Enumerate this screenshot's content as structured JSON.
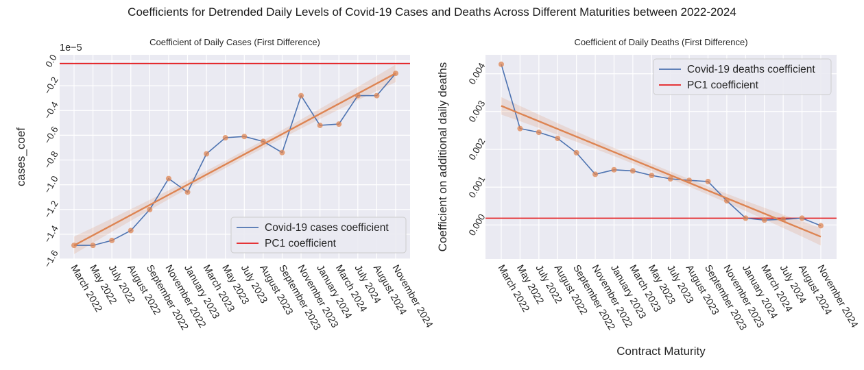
{
  "figure": {
    "suptitle": "Coefficients for Detrended Daily Levels of Covid-19 Cases and Deaths Across Different Maturities between 2022-2024"
  },
  "colors": {
    "panel_background": "#EAEAF2",
    "grid": "#FFFFFF",
    "series_line": "#4C72B0",
    "scatter_and_fit": "#DD8452",
    "pc1_line": "#E41A1C",
    "text": "#262626"
  },
  "chart_data": [
    {
      "type": "line",
      "title": "Coefficient of Daily Cases (First Difference)",
      "xlabel": "",
      "ylabel": "cases_coef",
      "y_offset_label": "1e−5",
      "ylim": [
        -1.6,
        0.05
      ],
      "y_unit_multiplier": 1e-05,
      "y_ticks": [
        0.0,
        -0.2,
        -0.4,
        -0.6,
        -0.8,
        -1.0,
        -1.2,
        -1.4,
        -1.6
      ],
      "y_tick_labels": [
        "0.0",
        "−0.2",
        "−0.4",
        "−0.6",
        "−0.8",
        "−1.0",
        "−1.2",
        "−1.4",
        "−1.6"
      ],
      "x_tick_labels": [
        "March 2022",
        "May 2022",
        "July 2022",
        "August 2022",
        "September 2022",
        "November 2022",
        "January 2023",
        "March 2023",
        "May 2023",
        "July 2023",
        "August 2023",
        "September 2023",
        "November 2023",
        "January 2024",
        "March 2024",
        "July 2024",
        "August 2024",
        "November 2024"
      ],
      "grid": true,
      "legend_position": "lower right",
      "series": [
        {
          "name": "Covid-19 cases coefficient",
          "values": [
            -1.49,
            -1.49,
            -1.45,
            -1.37,
            -1.2,
            -0.95,
            -1.06,
            -0.75,
            -0.62,
            -0.61,
            -0.65,
            -0.74,
            -0.28,
            -0.52,
            -0.51,
            -0.28,
            -0.28,
            -0.1
          ]
        }
      ],
      "reference_line": {
        "name": "PC1 coefficient",
        "value": -0.02
      },
      "trend_line": {
        "start": -1.49,
        "end": -0.1
      }
    },
    {
      "type": "line",
      "title": "Coefficient of Daily Deaths (First Difference)",
      "xlabel": "Contract Maturity",
      "ylabel": "Coefficient on additional daily deaths",
      "ylim": [
        -0.0009,
        0.0045
      ],
      "y_ticks": [
        0.0,
        0.001,
        0.002,
        0.003,
        0.004
      ],
      "y_tick_labels": [
        "0.000",
        "0.001",
        "0.002",
        "0.003",
        "0.004"
      ],
      "x_tick_labels": [
        "March 2022",
        "May 2022",
        "July 2022",
        "August 2022",
        "September 2022",
        "November 2022",
        "January 2023",
        "March 2023",
        "May 2023",
        "July 2023",
        "August 2023",
        "September 2023",
        "November 2023",
        "January 2024",
        "March 2024",
        "July 2024",
        "August 2024",
        "November 2024"
      ],
      "grid": true,
      "legend_position": "upper right",
      "series": [
        {
          "name": "Covid-19 deaths coefficient",
          "values": [
            0.00425,
            0.00255,
            0.00245,
            0.00229,
            0.00191,
            0.00134,
            0.00146,
            0.00143,
            0.00131,
            0.00122,
            0.00118,
            0.00115,
            0.00064,
            0.00018,
            0.00013,
            0.00015,
            0.00018,
            -2e-05
          ]
        }
      ],
      "reference_line": {
        "name": "PC1 coefficient",
        "value": 0.00018
      },
      "trend_line": {
        "start": 0.00315,
        "end": -0.00031
      }
    }
  ]
}
